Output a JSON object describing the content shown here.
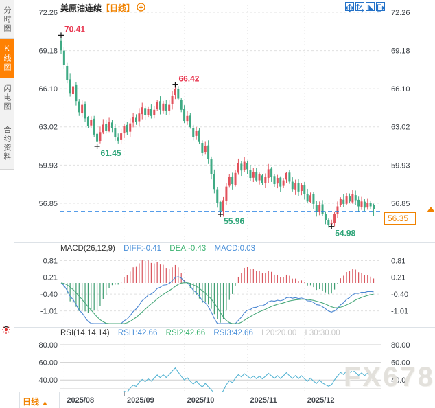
{
  "sidebar": {
    "items": [
      {
        "label": "分时图",
        "active": false
      },
      {
        "label": "K线图",
        "active": true
      },
      {
        "label": "闪电图",
        "active": false
      },
      {
        "label": "合约资料",
        "active": false
      }
    ]
  },
  "header": {
    "symbol": "美原油连续",
    "period_tag": "【日线】"
  },
  "toolbar": {
    "icons": [
      "pan-cross",
      "fit-y-axis",
      "fit-x-axis",
      "exit-chart"
    ]
  },
  "price_tag": {
    "value": "56.35"
  },
  "bottom_bar": {
    "period_label": "日线",
    "arrow": "▲"
  },
  "watermark": "FX678",
  "colors": {
    "up": "#e2525c",
    "down": "#3faa84",
    "up_dark": "#d9565e",
    "down_dark": "#3f9e72",
    "diff_line": "#4a86d2",
    "dea_line": "#4aa97c",
    "rsi_line": "#56b4d3",
    "accent_orange": "#f08200",
    "price_line_blue": "#1f7de2",
    "ann_red": "#e8364f",
    "ann_green": "#2fa579",
    "grid": "#e0e0e0",
    "vgrid": "#ececec",
    "axis_text": "#3a3f45"
  },
  "chart_data": {
    "type": "candlestick",
    "title": "美原油连续【日线】",
    "legend_position": "top-left",
    "grid": true,
    "y_ticks_main": [
      "72.26",
      "69.18",
      "66.10",
      "63.02",
      "59.93",
      "56.85"
    ],
    "x_labels": [
      {
        "label": "2025/08",
        "index": 1
      },
      {
        "label": "2025/09",
        "index": 21
      },
      {
        "label": "2025/10",
        "index": 41
      },
      {
        "label": "2025/11",
        "index": 62
      },
      {
        "label": "2025/12",
        "index": 81
      }
    ],
    "last_price": 56.35,
    "closes": [
      69.2,
      68.0,
      66.8,
      65.7,
      66.3,
      65.1,
      64.2,
      64.8,
      63.7,
      63.1,
      63.6,
      62.4,
      61.8,
      62.6,
      63.2,
      62.7,
      63.4,
      62.9,
      62.2,
      61.9,
      62.5,
      63.1,
      62.6,
      63.3,
      63.8,
      63.4,
      64.1,
      64.6,
      64.0,
      64.5,
      63.9,
      64.4,
      65.0,
      64.4,
      64.9,
      64.3,
      64.8,
      65.5,
      66.1,
      65.3,
      64.4,
      63.5,
      63.9,
      63.0,
      62.2,
      62.7,
      61.8,
      60.9,
      61.5,
      60.4,
      59.2,
      58.0,
      56.9,
      56.2,
      57.1,
      58.2,
      59.0,
      58.4,
      59.3,
      60.1,
      59.5,
      60.2,
      59.6,
      58.9,
      59.4,
      58.7,
      59.2,
      58.5,
      59.0,
      59.6,
      59.0,
      58.4,
      58.9,
      58.2,
      58.7,
      59.3,
      58.6,
      58.0,
      58.5,
      57.8,
      58.3,
      57.6,
      57.0,
      57.5,
      56.8,
      56.2,
      56.7,
      56.0,
      55.5,
      55.1,
      55.3,
      56.0,
      56.6,
      57.2,
      56.8,
      57.4,
      57.0,
      57.6,
      57.1,
      56.6,
      57.0,
      56.5,
      56.9,
      56.6,
      56.35
    ],
    "anchors": {
      "0": {
        "high": 70.41
      },
      "12": {
        "low": 61.45
      },
      "38": {
        "high": 66.42
      },
      "53": {
        "low": 55.96
      },
      "90": {
        "low": 54.98
      },
      "104": {
        "low": 55.85
      }
    },
    "annotations": [
      {
        "text": "70.41",
        "index": 0,
        "kind": "high",
        "price": 70.41
      },
      {
        "text": "61.45",
        "index": 12,
        "kind": "low",
        "price": 61.45
      },
      {
        "text": "66.42",
        "index": 38,
        "kind": "high",
        "price": 66.42
      },
      {
        "text": "55.96",
        "index": 53,
        "kind": "low",
        "price": 55.96
      },
      {
        "text": "54.98",
        "index": 90,
        "kind": "low",
        "price": 54.98
      }
    ],
    "indicators": {
      "macd": {
        "label": "MACD(26,12,9)",
        "diff_label": "DIFF:-0.41",
        "dea_label": "DEA:-0.43",
        "macd_label": "MACD:0.03",
        "y_ticks": [
          "0.81",
          "0.21",
          "-0.40",
          "-1.01"
        ]
      },
      "rsi": {
        "label": "RSI(14,14,14)",
        "rsi1_label": "RSI1:42.66",
        "rsi2_label": "RSI2:42.66",
        "rsi3_label": "RSI3:42.66",
        "l20_label": "L20:20.00",
        "l30_label": "L30:30.00",
        "y_ticks": [
          "80.00",
          "60.00",
          "40.00"
        ]
      }
    }
  }
}
